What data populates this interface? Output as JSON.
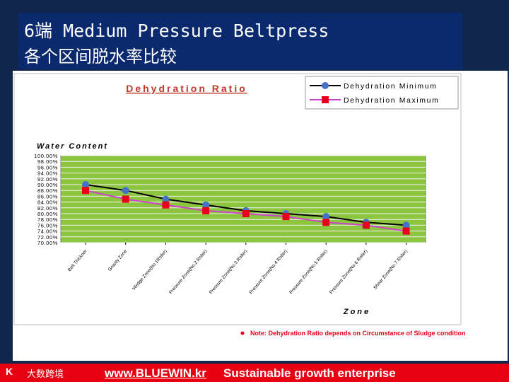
{
  "slide": {
    "title_line1": "6端 Medium Pressure Beltpress",
    "title_line2": "各个区间脱水率比较"
  },
  "chart_data": {
    "type": "line",
    "title": "Dehydration Ratio",
    "ylabel": "Water Content",
    "xlabel": "Zone",
    "categories": [
      "Belt Thickner",
      "Gravity Zone",
      "Wedge Zone(No.1Roller)",
      "Pressure Zone(No.2 Roller)",
      "Pressure Zone(No.3 Roller)",
      "Pressure Zone(No.4 Roller)",
      "Pressure Zone(No.5 Roller)",
      "Pressure Zone(No.6 Roller)",
      "Shear Zone(No.7 Roller)"
    ],
    "yticks": [
      "100.00%",
      "98.00%",
      "96.00%",
      "94.00%",
      "92.00%",
      "90.00%",
      "88.00%",
      "86.00%",
      "84.00%",
      "82.00%",
      "80.00%",
      "78.00%",
      "76.00%",
      "74.00%",
      "72.00%",
      "70.00%"
    ],
    "ylim": [
      70,
      100
    ],
    "series": [
      {
        "name": "Dehydration Minimum",
        "color": "#4472c4",
        "line_color": "#000000",
        "marker": "circle",
        "values": [
          90.0,
          88.0,
          85.0,
          83.0,
          81.0,
          80.0,
          79.0,
          77.0,
          76.0
        ]
      },
      {
        "name": "Dehydration Maximum",
        "color": "#e8001c",
        "line_color": "#cc44cc",
        "marker": "square",
        "values": [
          88.0,
          85.0,
          83.0,
          81.0,
          80.0,
          79.0,
          77.0,
          76.0,
          74.0
        ]
      }
    ],
    "grid": true,
    "legend_position": "top-right",
    "plot_background": "#8cc63f",
    "note": "Note: Dehydration Ratio depends on Circumstance of Sludge condition"
  },
  "footer": {
    "logo": "K",
    "brand": "大数跨境",
    "url": "www.BLUEWIN.kr",
    "tagline": "Sustainable growth enterprise"
  }
}
